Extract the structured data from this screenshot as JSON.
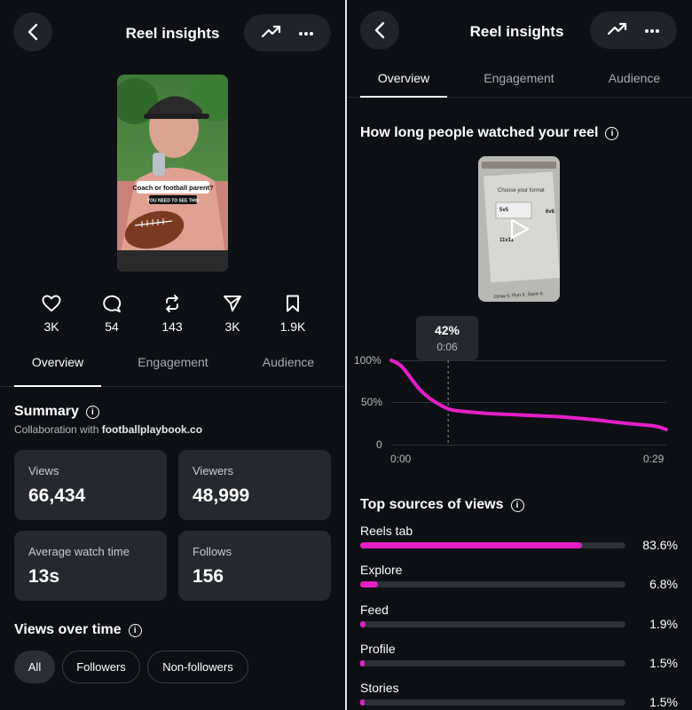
{
  "left": {
    "header": {
      "title": "Reel insights"
    },
    "thumbnail": {
      "caption_line1": "Coach or football parent?",
      "caption_line2": "YOU NEED TO SEE THIS"
    },
    "stats": [
      {
        "icon": "heart-icon",
        "value": "3K"
      },
      {
        "icon": "comment-icon",
        "value": "54"
      },
      {
        "icon": "repost-icon",
        "value": "143"
      },
      {
        "icon": "share-icon",
        "value": "3K"
      },
      {
        "icon": "bookmark-icon",
        "value": "1.9K"
      }
    ],
    "tabs": [
      "Overview",
      "Engagement",
      "Audience"
    ],
    "summary": {
      "title": "Summary",
      "collab_prefix": "Collaboration with ",
      "collab_account": "footballplaybook.co",
      "cards": [
        {
          "label": "Views",
          "value": "66,434"
        },
        {
          "label": "Viewers",
          "value": "48,999"
        },
        {
          "label": "Average watch time",
          "value": "13s"
        },
        {
          "label": "Follows",
          "value": "156"
        }
      ]
    },
    "views_over_time": {
      "title": "Views over time",
      "chips": [
        "All",
        "Followers",
        "Non-followers"
      ]
    }
  },
  "right": {
    "header": {
      "title": "Reel insights"
    },
    "tabs": [
      "Overview",
      "Engagement",
      "Audience"
    ],
    "retention_title": "How long people watched your reel",
    "video_preview": {
      "line1": "Choose your format",
      "line2": "5v5",
      "line3": "6v6",
      "line4": "11v11",
      "line5": "Draw it. Run it. Save it."
    },
    "tooltip": {
      "percent": "42%",
      "time": "0:06"
    },
    "chart_data": {
      "type": "line",
      "title": "How long people watched your reel",
      "x_tick_labels": [
        "0:00",
        "0:29"
      ],
      "y_tick_labels": [
        "100%",
        "50%",
        "0"
      ],
      "xlim": [
        0,
        29
      ],
      "ylim": [
        0,
        100
      ],
      "grid": true,
      "series": [
        {
          "color": "#e51fc6",
          "x": [
            0,
            1,
            2,
            3,
            4,
            5,
            6,
            7,
            8,
            10,
            12,
            14,
            16,
            18,
            20,
            22,
            24,
            26,
            28,
            29
          ],
          "y": [
            100,
            95,
            80,
            65,
            55,
            48,
            42,
            40,
            39,
            37,
            36,
            35,
            34,
            33,
            31,
            29,
            26,
            24,
            22,
            18
          ]
        }
      ],
      "annotation": {
        "x": 6,
        "y": 42,
        "label": "42%",
        "sublabel": "0:06"
      }
    },
    "top_sources": {
      "title": "Top sources of views",
      "accent": "#e51fc6",
      "items": [
        {
          "label": "Reels tab",
          "percent": "83.6%",
          "value": 83.6
        },
        {
          "label": "Explore",
          "percent": "6.8%",
          "value": 6.8
        },
        {
          "label": "Feed",
          "percent": "1.9%",
          "value": 1.9
        },
        {
          "label": "Profile",
          "percent": "1.5%",
          "value": 1.5
        },
        {
          "label": "Stories",
          "percent": "1.5%",
          "value": 1.5
        }
      ]
    }
  }
}
